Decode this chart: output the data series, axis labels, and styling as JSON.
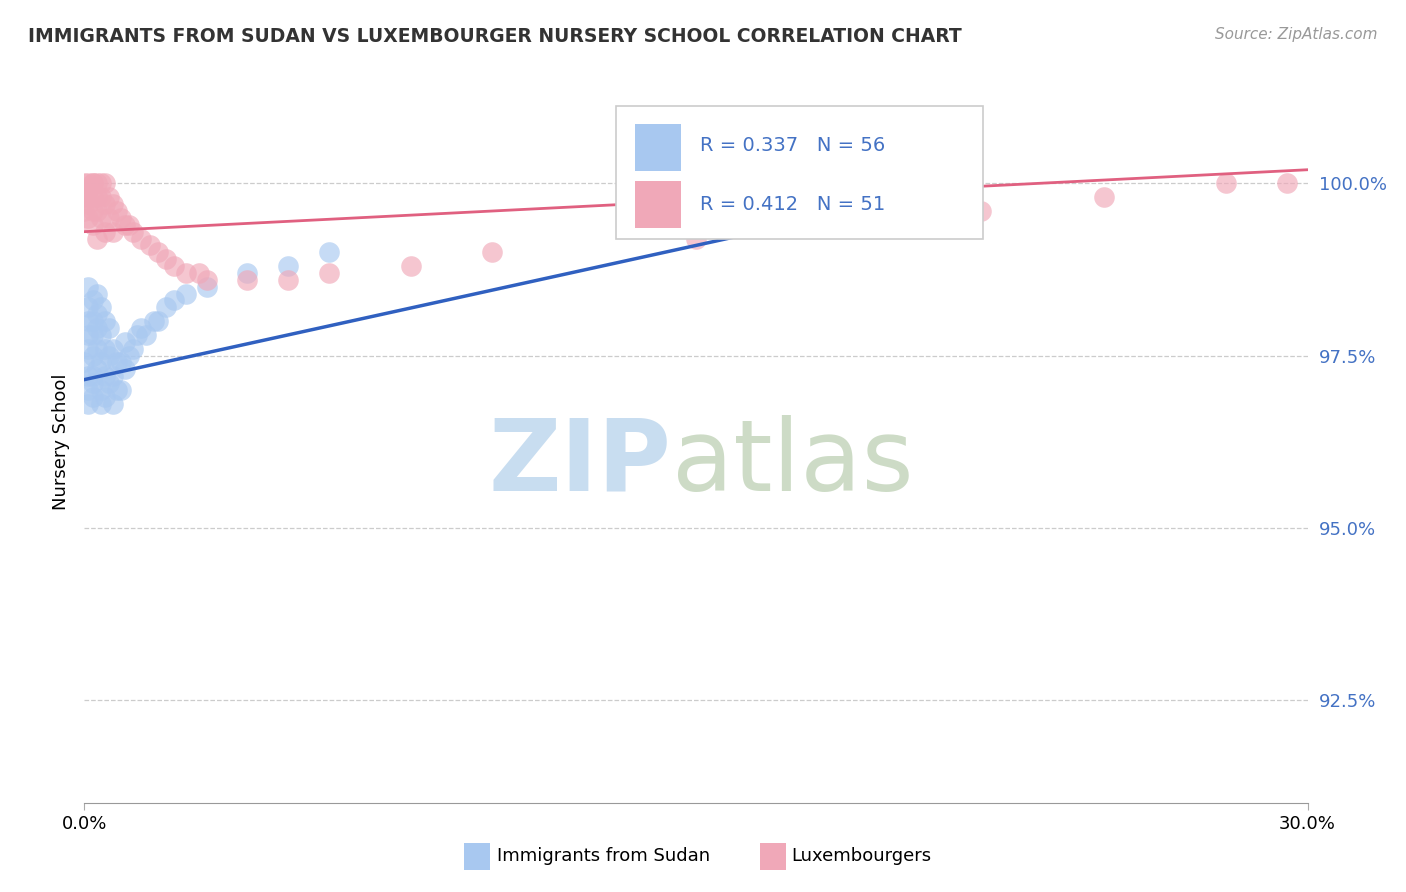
{
  "title": "IMMIGRANTS FROM SUDAN VS LUXEMBOURGER NURSERY SCHOOL CORRELATION CHART",
  "source": "Source: ZipAtlas.com",
  "ylabel": "Nursery School",
  "x_range": [
    0.0,
    0.3
  ],
  "y_range": [
    91.0,
    101.5
  ],
  "blue_color": "#a8c8f0",
  "pink_color": "#f0a8b8",
  "blue_line_color": "#3060c0",
  "pink_line_color": "#e06080",
  "y_tick_vals": [
    92.5,
    95.0,
    97.5,
    100.0
  ],
  "y_tick_labels": [
    "92.5%",
    "95.0%",
    "97.5%",
    "100.0%"
  ],
  "sudan_x": [
    0.0,
    0.001,
    0.001,
    0.001,
    0.001,
    0.001,
    0.001,
    0.001,
    0.001,
    0.002,
    0.002,
    0.002,
    0.002,
    0.002,
    0.002,
    0.002,
    0.003,
    0.003,
    0.003,
    0.003,
    0.003,
    0.004,
    0.004,
    0.004,
    0.004,
    0.004,
    0.005,
    0.005,
    0.005,
    0.005,
    0.006,
    0.006,
    0.006,
    0.007,
    0.007,
    0.007,
    0.008,
    0.008,
    0.009,
    0.009,
    0.01,
    0.01,
    0.011,
    0.012,
    0.013,
    0.014,
    0.015,
    0.017,
    0.018,
    0.02,
    0.022,
    0.025,
    0.03,
    0.04,
    0.05,
    0.06
  ],
  "sudan_y": [
    97.4,
    97.2,
    97.6,
    97.8,
    98.0,
    98.2,
    98.5,
    97.0,
    96.8,
    97.5,
    97.8,
    98.0,
    98.3,
    97.2,
    96.9,
    97.1,
    97.9,
    98.1,
    98.4,
    97.3,
    97.6,
    97.0,
    97.4,
    97.8,
    98.2,
    96.8,
    97.2,
    97.6,
    98.0,
    96.9,
    97.1,
    97.5,
    97.9,
    96.8,
    97.2,
    97.6,
    97.0,
    97.4,
    97.0,
    97.4,
    97.3,
    97.7,
    97.5,
    97.6,
    97.8,
    97.9,
    97.8,
    98.0,
    98.0,
    98.2,
    98.3,
    98.4,
    98.5,
    98.7,
    98.8,
    99.0
  ],
  "lux_x": [
    0.0,
    0.0,
    0.0,
    0.001,
    0.001,
    0.001,
    0.001,
    0.001,
    0.002,
    0.002,
    0.002,
    0.002,
    0.002,
    0.003,
    0.003,
    0.003,
    0.003,
    0.004,
    0.004,
    0.004,
    0.005,
    0.005,
    0.005,
    0.006,
    0.006,
    0.007,
    0.007,
    0.008,
    0.009,
    0.01,
    0.011,
    0.012,
    0.014,
    0.016,
    0.018,
    0.02,
    0.022,
    0.025,
    0.028,
    0.03,
    0.04,
    0.05,
    0.06,
    0.08,
    0.1,
    0.15,
    0.18,
    0.22,
    0.25,
    0.28,
    0.295
  ],
  "lux_y": [
    99.8,
    100.0,
    99.6,
    99.9,
    100.0,
    99.7,
    99.5,
    99.8,
    100.0,
    99.6,
    99.8,
    100.0,
    99.4,
    99.8,
    100.0,
    99.6,
    99.2,
    99.8,
    100.0,
    99.5,
    99.7,
    100.0,
    99.3,
    99.8,
    99.5,
    99.7,
    99.3,
    99.6,
    99.5,
    99.4,
    99.4,
    99.3,
    99.2,
    99.1,
    99.0,
    98.9,
    98.8,
    98.7,
    98.7,
    98.6,
    98.6,
    98.6,
    98.7,
    98.8,
    99.0,
    99.2,
    99.4,
    99.6,
    99.8,
    100.0,
    100.0
  ]
}
